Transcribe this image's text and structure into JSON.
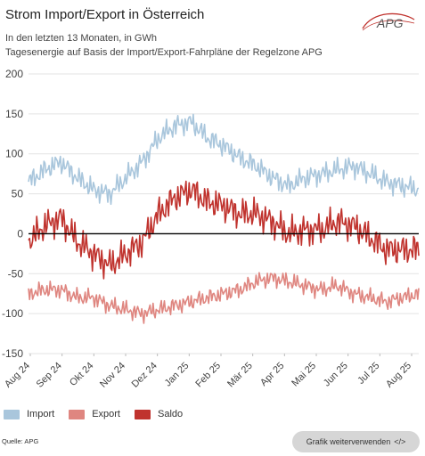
{
  "title": "Strom Import/Export in Österreich",
  "subtitle_1": "In den letzten 13 Monaten, in GWh",
  "subtitle_2": "Tagesenergie auf Basis der Import/Export-Fahrpläne der Regelzone APG",
  "logo_text": "APG",
  "source": "Quelle: APG",
  "share_button": {
    "label": "Grafik weiterverwenden",
    "icon": "code-icon",
    "icon_glyph": "</>"
  },
  "colors": {
    "import": "#a9c6dc",
    "export": "#df8680",
    "saldo": "#c0332e",
    "zero_line": "#000000",
    "grid": "#e3e3e3"
  },
  "chart_data": {
    "type": "line",
    "title": "Strom Import/Export in Österreich",
    "xlabel": "",
    "ylabel": "",
    "ylim": [
      -150,
      200
    ],
    "yticks": [
      200,
      150,
      100,
      50,
      0,
      -50,
      -100,
      -150
    ],
    "x_ticks": [
      "Aug 24",
      "Sep 24",
      "Okt 24",
      "Nov 24",
      "Dez 24",
      "Jan 25",
      "Feb 25",
      "Mär 25",
      "Apr 25",
      "Mai 25",
      "Jun 25",
      "Jul 25",
      "Aug 25"
    ],
    "grid": true,
    "legend": "bottom-left",
    "x": [
      "Aug 24",
      "Aug 24",
      "Sep 24",
      "Sep 24",
      "Okt 24",
      "Okt 24",
      "Nov 24",
      "Nov 24",
      "Dez 24",
      "Dez 24",
      "Jan 25",
      "Jan 25",
      "Feb 25",
      "Feb 25",
      "Mär 25",
      "Mär 25",
      "Apr 25",
      "Apr 25",
      "Mai 25",
      "Mai 25",
      "Jun 25",
      "Jun 25",
      "Jul 25",
      "Jul 25",
      "Aug 25"
    ],
    "series": [
      {
        "name": "Import",
        "values": [
          65,
          80,
          90,
          70,
          55,
          50,
          70,
          90,
          120,
          135,
          140,
          120,
          110,
          95,
          85,
          70,
          60,
          70,
          75,
          80,
          85,
          75,
          65,
          60,
          55
        ]
      },
      {
        "name": "Export",
        "values": [
          -75,
          -70,
          -70,
          -80,
          -80,
          -90,
          -95,
          -100,
          -95,
          -90,
          -85,
          -80,
          -75,
          -70,
          -60,
          -55,
          -60,
          -65,
          -70,
          -65,
          -75,
          -80,
          -85,
          -80,
          -75
        ]
      },
      {
        "name": "Saldo",
        "values": [
          -10,
          10,
          20,
          -10,
          -25,
          -40,
          -25,
          -10,
          25,
          45,
          55,
          40,
          35,
          25,
          25,
          15,
          0,
          5,
          5,
          15,
          10,
          -5,
          -20,
          -20,
          -20
        ]
      }
    ]
  }
}
